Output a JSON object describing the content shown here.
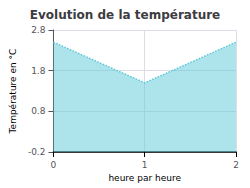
{
  "chart_data": {
    "type": "line",
    "title": "Evolution de la température",
    "xlabel": "heure par heure",
    "ylabel": "Température en °C",
    "x": [
      0,
      1,
      2
    ],
    "values": [
      2.5,
      1.5,
      2.5
    ],
    "color": "#5bc8d8",
    "line_style": "dotted",
    "xlim": [
      0,
      2
    ],
    "xticks": [
      0,
      1,
      2
    ],
    "ylim": [
      -0.2,
      2.8
    ],
    "yticks": [
      -0.2,
      0.8,
      1.8,
      2.8
    ],
    "grid": true
  }
}
